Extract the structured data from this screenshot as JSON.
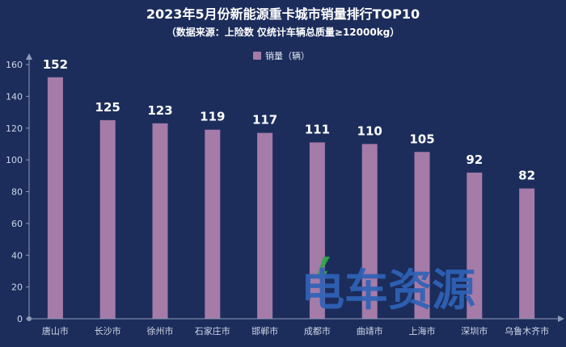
{
  "chart_data": {
    "type": "bar",
    "title": "2023年5月份新能源重卡城市销量排行TOP10",
    "subtitle": "（数据来源：上险数 仅统计车辆总质量≥12000kg）",
    "legend": "销量（辆）",
    "categories": [
      "唐山市",
      "长沙市",
      "徐州市",
      "石家庄市",
      "邯郸市",
      "成都市",
      "曲靖市",
      "上海市",
      "深圳市",
      "乌鲁木齐市"
    ],
    "values": [
      152,
      125,
      123,
      119,
      117,
      111,
      110,
      105,
      92,
      82
    ],
    "y_ticks": [
      0,
      20,
      40,
      60,
      80,
      100,
      120,
      140,
      160
    ],
    "ylim": [
      0,
      160
    ],
    "xlabel": "",
    "ylabel": "",
    "grid": false,
    "legend_position": "top-center"
  },
  "watermark": {
    "text": "电车资源"
  },
  "colors": {
    "background": "#1c2d5c",
    "bar": "#a57ba8",
    "axis": "#8e9ab8",
    "watermark_blue": "#2f63b8",
    "watermark_green": "#2fa84a"
  }
}
